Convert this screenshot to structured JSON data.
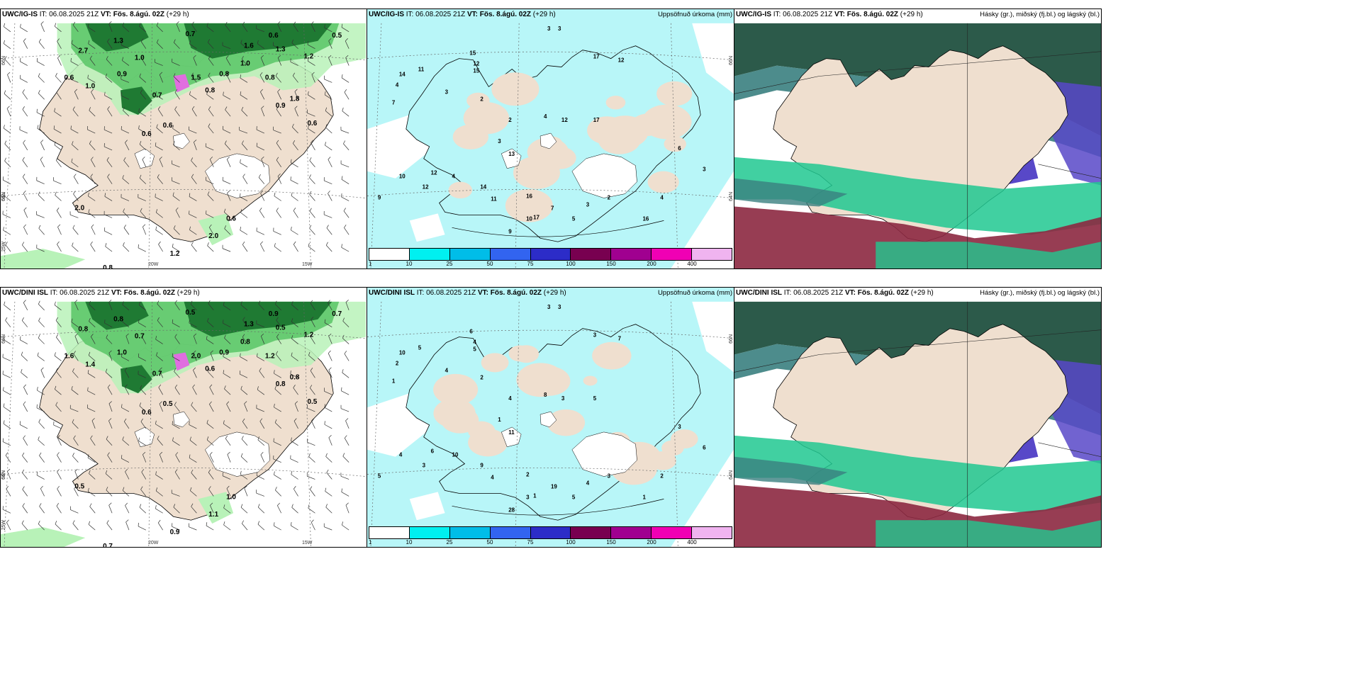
{
  "panels": [
    {
      "id": "igis-wind",
      "model": "UWC/IG-IS",
      "init": "IT: 06.08.2025 21Z",
      "valid": "VT: Fös. 8.ágú. 02Z",
      "lead": "(+29 h)",
      "right_title": "",
      "type": "wind",
      "values": [
        "0.7",
        "2.7",
        "1.3",
        "0.6",
        "1.0",
        "0.9",
        "0.7",
        "0.8",
        "1.6",
        "0.6",
        "1.0",
        "1.3",
        "0.8",
        "1.2",
        "0.5",
        "1.8",
        "0.6",
        "0.6",
        "1.5",
        "0.8",
        "0.6",
        "1.0",
        "2.0",
        "0.6",
        "1.2",
        "0.8",
        "2.0",
        "0.9"
      ],
      "grid_labels": [
        "66N",
        "65N",
        "64N",
        "25W",
        "20W",
        "15W"
      ]
    },
    {
      "id": "igis-precip",
      "model": "UWC/IG-IS",
      "init": "IT: 06.08.2025 21Z",
      "valid": "VT: Fös. 8.ágú. 02Z",
      "lead": "(+29 h)",
      "right_title": "Uppsöfnuð úrkoma (mm)",
      "type": "precip",
      "values": [
        "3",
        "3",
        "14",
        "15",
        "11",
        "12",
        "4",
        "7",
        "17",
        "12",
        "3",
        "2",
        "4",
        "2",
        "12",
        "17",
        "3",
        "13",
        "12",
        "10",
        "4",
        "12",
        "14",
        "11",
        "16",
        "15",
        "10",
        "17",
        "9",
        "7",
        "5",
        "3",
        "2",
        "16",
        "4",
        "6",
        "3",
        "9"
      ],
      "grid_labels": [
        "66N",
        "64N"
      ]
    },
    {
      "id": "igis-cloud",
      "model": "UWC/IG-IS",
      "init": "IT: 06.08.2025 21Z",
      "valid": "VT: Fös. 8.ágú. 02Z",
      "lead": "(+29 h)",
      "right_title": "Hásky (gr.), miðský (fj.bl.) og lágský (bl.)",
      "type": "cloud"
    },
    {
      "id": "dini-wind",
      "model": "UWC/DINI ISL",
      "init": "IT: 06.08.2025 21Z",
      "valid": "VT: Fös. 8.ágú. 02Z",
      "lead": "(+29 h)",
      "right_title": "",
      "type": "wind",
      "values": [
        "0.5",
        "0.8",
        "0.8",
        "1.6",
        "0.7",
        "1.0",
        "0.7",
        "0.6",
        "1.3",
        "0.9",
        "0.8",
        "0.5",
        "0.9",
        "1.2",
        "0.7",
        "0.8",
        "0.5",
        "0.6",
        "2.0",
        "1.2",
        "0.5",
        "1.4",
        "0.5",
        "1.0",
        "0.9",
        "0.7",
        "1.1",
        "0.8"
      ],
      "grid_labels": [
        "66N",
        "65N",
        "64N",
        "25W",
        "20W",
        "15W"
      ]
    },
    {
      "id": "dini-precip",
      "model": "UWC/DINI ISL",
      "init": "IT: 06.08.2025 21Z",
      "valid": "VT: Fös. 8.ágú. 02Z",
      "lead": "(+29 h)",
      "right_title": "Uppsöfnuð úrkoma (mm)",
      "type": "precip",
      "values": [
        "3",
        "3",
        "10",
        "6",
        "5",
        "4",
        "2",
        "1",
        "3",
        "7",
        "4",
        "2",
        "8",
        "4",
        "3",
        "5",
        "1",
        "11",
        "6",
        "4",
        "10",
        "3",
        "9",
        "4",
        "2",
        "5",
        "3",
        "1",
        "28",
        "19",
        "5",
        "4",
        "3",
        "1",
        "2",
        "3",
        "6",
        "5"
      ],
      "grid_labels": [
        "66N",
        "64N"
      ]
    },
    {
      "id": "dini-cloud",
      "model": "UWC/DINI ISL",
      "init": "IT: 06.08.2025 21Z",
      "valid": "VT: Fös. 8.ágú. 02Z",
      "lead": "(+29 h)",
      "right_title": "Hásky (gr.), miðský (fj.bl.) og lágský (bl.)",
      "type": "cloud"
    }
  ],
  "precip_scale": {
    "ticks": [
      "1",
      "10",
      "25",
      "50",
      "75",
      "100",
      "150",
      "200",
      "400"
    ],
    "colors": [
      "#ffffff",
      "#00f0f0",
      "#00bde8",
      "#3264f0",
      "#2c2cc8",
      "#780050",
      "#a00090",
      "#f000b4",
      "#f0b4f0"
    ]
  },
  "colors": {
    "land": "#efdfcf",
    "precip_light": "#b8f6f8",
    "green_light": "#b8f2b8",
    "green_mid": "#5ec86a",
    "green_dark": "#1f7a33",
    "magenta": "#e06ee0",
    "cloud_high": "#2c5a4a",
    "cloud_mid": "#5848c8",
    "cloud_low": "#20c890",
    "cloud_red": "#8c2840",
    "cloud_teal": "#3a8080"
  }
}
